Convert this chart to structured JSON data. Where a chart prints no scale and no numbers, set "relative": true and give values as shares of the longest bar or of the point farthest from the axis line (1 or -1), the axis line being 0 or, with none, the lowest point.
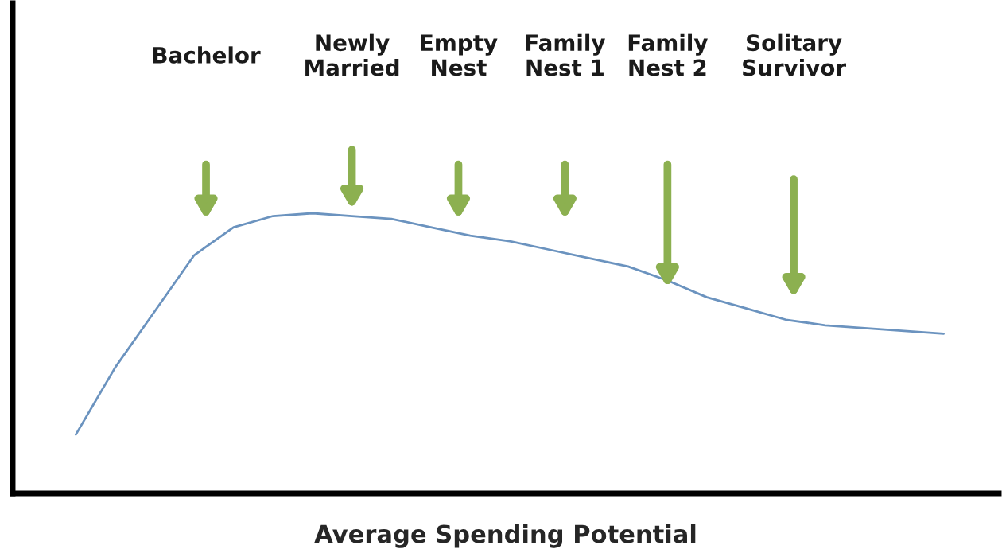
{
  "chart_data": {
    "type": "line",
    "relative": true,
    "xlabel": "Average Spending Potential",
    "categories": [
      null,
      null,
      null,
      null,
      null,
      null,
      null,
      null,
      null,
      null,
      null,
      null,
      null,
      null,
      null,
      null,
      null,
      null,
      null,
      null,
      null,
      null,
      null
    ],
    "series": [
      {
        "color": "#6b93bf",
        "values": [
          0.21,
          0.45,
          0.65,
          0.85,
          0.95,
          0.99,
          1.0,
          0.99,
          0.98,
          0.95,
          0.92,
          0.9,
          0.87,
          0.84,
          0.81,
          0.76,
          0.7,
          0.66,
          0.62,
          0.6,
          0.59,
          0.58,
          0.57
        ]
      }
    ],
    "annotations": [
      "Bachelor",
      "Newly\nMarried",
      "Empty\nNest",
      "Family\nNest 1",
      "Family\nNest 2",
      "Solitary\nSurvivor"
    ],
    "line_style": "solid"
  }
}
